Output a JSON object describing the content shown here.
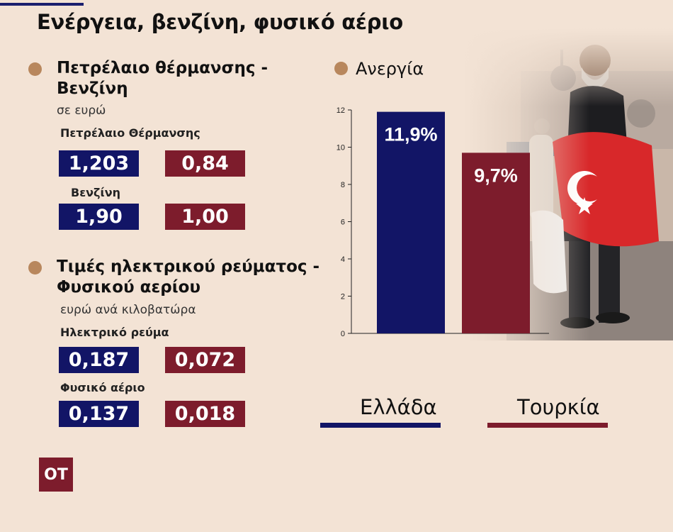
{
  "title": "Ενέργεια, βενζίνη, φυσικό αέριο",
  "section1": {
    "heading_line1": "Πετρέλαιο θέρμανσης -",
    "heading_line2": "Βενζίνη",
    "unit": "σε ευρώ",
    "rows": [
      {
        "label": "Πετρέλαιο Θέρμανσης",
        "greece": "1,203",
        "turkey": "0,84"
      },
      {
        "label": "Βενζίνη",
        "greece": "1,90",
        "turkey": "1,00"
      }
    ]
  },
  "section2": {
    "heading_line1": "Τιμές ηλεκτρικού ρεύματος -",
    "heading_line2": "Φυσικού αερίου",
    "unit": "ευρώ ανά κιλοβατώρα",
    "rows": [
      {
        "label": "Ηλεκτρικό ρεύμα",
        "greece": "0,187",
        "turkey": "0,072"
      },
      {
        "label": "Φυσικό αέριο",
        "greece": "0,137",
        "turkey": "0,018"
      }
    ]
  },
  "logo": "OT",
  "colors": {
    "greece": "#121566",
    "turkey": "#7d1c2c",
    "bullet": "#b8875d",
    "background": "#f3e3d5"
  },
  "chart_data": {
    "type": "bar",
    "title": "Ανεργία",
    "categories": [
      "Ελλάδα",
      "Τουρκία"
    ],
    "values": [
      11.9,
      9.7
    ],
    "value_labels": [
      "11,9%",
      "9,7%"
    ],
    "ylim": [
      0,
      12
    ],
    "yticks": [
      0,
      2,
      4,
      6,
      8,
      10,
      12
    ],
    "xlabel": "",
    "ylabel": "",
    "grid": false,
    "legend": "bottom"
  }
}
